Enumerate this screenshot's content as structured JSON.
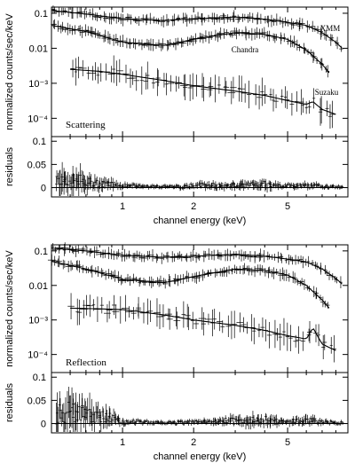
{
  "chart_data": [
    {
      "type": "scatter",
      "ylabel": "normalized counts/sec/keV",
      "x_scale": "log",
      "y_scale": "log",
      "xlim": [
        0.5,
        9.0
      ],
      "ylim": [
        3e-05,
        0.15
      ],
      "x_ticks": [
        1,
        2,
        5
      ],
      "y_ticks": [
        {
          "value": 0.1,
          "label": "0.1"
        },
        {
          "value": 0.01,
          "label": "0.01"
        },
        {
          "value": 0.001,
          "label": "10⁻³"
        },
        {
          "value": 0.0001,
          "label": "10⁻⁴"
        }
      ],
      "model_label": "Scattering",
      "series": [
        {
          "name": "XMM",
          "x": [
            0.5,
            0.7,
            1.0,
            1.5,
            2.0,
            3.0,
            4.0,
            5.0,
            6.0,
            7.0,
            8.0,
            8.5
          ],
          "y": [
            0.12,
            0.095,
            0.07,
            0.062,
            0.07,
            0.078,
            0.068,
            0.055,
            0.045,
            0.028,
            0.015,
            0.01
          ]
        },
        {
          "name": "Chandra",
          "x": [
            0.5,
            0.7,
            1.0,
            1.5,
            2.0,
            3.0,
            4.0,
            5.0,
            6.0,
            7.0,
            7.5
          ],
          "y": [
            0.045,
            0.03,
            0.015,
            0.012,
            0.018,
            0.028,
            0.025,
            0.018,
            0.009,
            0.0035,
            0.002
          ]
        },
        {
          "name": "Suzaku",
          "x": [
            0.6,
            0.8,
            1.0,
            1.5,
            2.0,
            3.0,
            4.0,
            5.0,
            6.0,
            6.4,
            7.0,
            8.0
          ],
          "y": [
            0.0025,
            0.0022,
            0.0018,
            0.0012,
            0.00085,
            0.0006,
            0.00045,
            0.00032,
            0.00025,
            0.0003,
            0.00018,
            0.00013
          ]
        }
      ]
    },
    {
      "type": "scatter",
      "ylabel": "residuals",
      "x_scale": "log",
      "xlim": [
        0.5,
        9.0
      ],
      "ylim": [
        -0.02,
        0.11
      ],
      "x_ticks": [
        1,
        2,
        5
      ],
      "y_ticks": [
        0,
        0.05,
        0.1
      ],
      "xlabel": "channel energy (keV)",
      "x": [
        0.6,
        0.8,
        1.0,
        1.5,
        2.0,
        3.0,
        4.0,
        5.0,
        6.0,
        7.0,
        8.0
      ],
      "y": [
        0.02,
        0.01,
        0.005,
        0.002,
        0.005,
        0.006,
        0.008,
        0.004,
        0.006,
        0.003,
        0.002
      ]
    },
    {
      "type": "scatter",
      "ylabel": "normalized counts/sec/keV",
      "x_scale": "log",
      "y_scale": "log",
      "xlim": [
        0.5,
        9.0
      ],
      "ylim": [
        3e-05,
        0.15
      ],
      "x_ticks": [
        1,
        2,
        5
      ],
      "y_ticks": [
        {
          "value": 0.1,
          "label": "0.1"
        },
        {
          "value": 0.01,
          "label": "0.01"
        },
        {
          "value": 0.001,
          "label": "10⁻³"
        },
        {
          "value": 0.0001,
          "label": "10⁻⁴"
        }
      ],
      "model_label": "Reflection",
      "series": [
        {
          "x": [
            0.5,
            0.7,
            1.0,
            1.5,
            2.0,
            3.0,
            4.0,
            5.0,
            6.0,
            7.0,
            8.0,
            8.5
          ],
          "y": [
            0.12,
            0.1,
            0.075,
            0.065,
            0.07,
            0.08,
            0.07,
            0.058,
            0.048,
            0.03,
            0.016,
            0.011
          ]
        },
        {
          "x": [
            0.5,
            0.7,
            1.0,
            1.5,
            2.0,
            3.0,
            4.0,
            5.0,
            6.0,
            7.0,
            7.5
          ],
          "y": [
            0.05,
            0.03,
            0.015,
            0.012,
            0.018,
            0.03,
            0.027,
            0.02,
            0.01,
            0.0038,
            0.0022
          ]
        },
        {
          "x": [
            0.6,
            0.8,
            1.0,
            1.5,
            2.0,
            3.0,
            4.0,
            5.0,
            6.0,
            6.4,
            7.0,
            8.0
          ],
          "y": [
            0.0022,
            0.0021,
            0.002,
            0.0014,
            0.001,
            0.0007,
            0.0005,
            0.00035,
            0.00028,
            0.0006,
            0.0002,
            0.00013
          ]
        }
      ]
    },
    {
      "type": "scatter",
      "ylabel": "residuals",
      "x_scale": "log",
      "xlim": [
        0.5,
        9.0
      ],
      "ylim": [
        -0.02,
        0.11
      ],
      "x_ticks": [
        1,
        2,
        5
      ],
      "y_ticks": [
        0,
        0.05,
        0.1
      ],
      "xlabel": "channel energy (keV)",
      "x": [
        0.6,
        0.8,
        1.0,
        1.5,
        2.0,
        3.0,
        4.0,
        5.0,
        6.0,
        7.0,
        8.0
      ],
      "y": [
        0.03,
        0.02,
        0.005,
        0.002,
        0.004,
        0.008,
        0.01,
        0.005,
        0.008,
        0.004,
        0.002
      ]
    }
  ]
}
